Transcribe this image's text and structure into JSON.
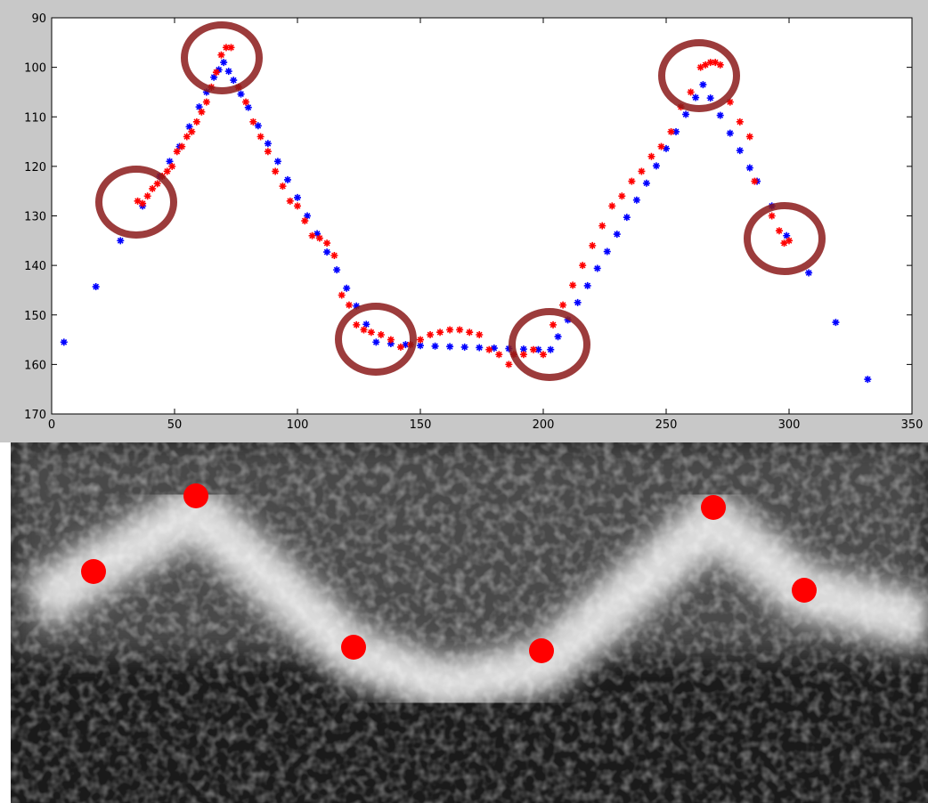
{
  "chart_data": {
    "type": "scatter",
    "xlim": [
      0,
      350
    ],
    "ylim": [
      90,
      170
    ],
    "y_reversed": true,
    "xticks": [
      0,
      50,
      100,
      150,
      200,
      250,
      300,
      350
    ],
    "yticks": [
      90,
      100,
      110,
      120,
      130,
      140,
      150,
      160,
      170
    ],
    "series": [
      {
        "color": "#0000ff",
        "x": [
          5,
          18,
          28,
          37,
          44,
          48,
          52,
          56,
          60,
          63,
          66,
          68,
          70,
          72,
          74,
          77,
          80,
          84,
          88,
          92,
          96,
          100,
          104,
          108,
          112,
          116,
          120,
          124,
          128,
          132,
          138,
          144,
          150,
          156,
          162,
          168,
          174,
          180,
          186,
          192,
          198,
          203,
          206,
          210,
          214,
          218,
          222,
          226,
          230,
          234,
          238,
          242,
          246,
          250,
          254,
          258,
          262,
          265,
          268,
          272,
          276,
          280,
          284,
          287,
          293,
          299,
          308,
          319,
          332
        ],
        "values": [
          155.5,
          144.3,
          135,
          128,
          122,
          119,
          116,
          112,
          108,
          105,
          102,
          100.5,
          99,
          100.8,
          102.6,
          105.4,
          108.1,
          111.8,
          115.4,
          119,
          122.7,
          126.3,
          130,
          133.6,
          137.3,
          140.9,
          144.6,
          148.2,
          151.9,
          155.5,
          155.8,
          156,
          156.2,
          156.3,
          156.4,
          156.5,
          156.6,
          156.7,
          156.8,
          156.9,
          157,
          157,
          154.4,
          151,
          147.5,
          144.1,
          140.6,
          137.2,
          133.7,
          130.3,
          126.8,
          123.4,
          119.9,
          116.4,
          113,
          109.5,
          106.1,
          103.5,
          106.2,
          109.7,
          113.3,
          116.8,
          120.3,
          123,
          128,
          134,
          141.5,
          151.5,
          163
        ]
      },
      {
        "color": "#ff0000",
        "x": [
          35,
          37,
          39,
          41,
          43,
          45,
          47,
          49,
          51,
          53,
          55,
          57,
          59,
          61,
          63,
          65,
          67,
          69,
          71,
          73,
          76,
          79,
          82,
          85,
          88,
          91,
          94,
          97,
          100,
          103,
          106,
          109,
          112,
          115,
          118,
          121,
          124,
          127,
          130,
          134,
          138,
          142,
          146,
          150,
          154,
          158,
          162,
          166,
          170,
          174,
          178,
          182,
          186,
          188,
          192,
          196,
          200,
          204,
          208,
          212,
          216,
          220,
          224,
          228,
          232,
          236,
          240,
          244,
          248,
          252,
          256,
          260,
          264,
          266,
          268,
          270,
          272,
          276,
          280,
          284,
          286,
          293,
          296,
          298,
          300
        ],
        "values": [
          127,
          127.5,
          126,
          124.5,
          123.5,
          122,
          121,
          120,
          117,
          116,
          114,
          113,
          111,
          109,
          107,
          104,
          101,
          97.5,
          96,
          96,
          104,
          107,
          111,
          114,
          117,
          121,
          124,
          127,
          128,
          131,
          134,
          134.5,
          135.5,
          138,
          146,
          148,
          152,
          153,
          153.5,
          154,
          155,
          156.5,
          156,
          155,
          154,
          153.5,
          153,
          153,
          153.5,
          154,
          157,
          158,
          160,
          158,
          158,
          157,
          158,
          152,
          148,
          144,
          140,
          136,
          132,
          128,
          126,
          123,
          121,
          118,
          116,
          113,
          108,
          105,
          100,
          99.5,
          99,
          99,
          99.5,
          107,
          111,
          114,
          123,
          130,
          133,
          135.5,
          135
        ]
      }
    ]
  }
}
